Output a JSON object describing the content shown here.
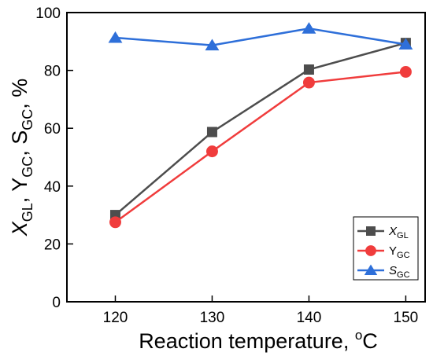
{
  "chart_data": {
    "type": "line",
    "xlabel": "Reaction temperature, ",
    "xlabel_unit_sup": "o",
    "xlabel_unit": "C",
    "ylabel_parts": [
      {
        "main": "X",
        "sub": "GL",
        "italic": true
      },
      {
        "text": ", ",
        "italic": false
      },
      {
        "main": "Y",
        "sub": "GC",
        "italic": false
      },
      {
        "text": ", ",
        "italic": false
      },
      {
        "main": "S",
        "sub": "GC",
        "italic": false
      },
      {
        "text": ", %",
        "italic": false
      }
    ],
    "x": [
      120,
      130,
      140,
      150
    ],
    "xlim": [
      115,
      152
    ],
    "ylim": [
      0,
      100
    ],
    "xticks": [
      "120",
      "130",
      "140",
      "150"
    ],
    "yticks": [
      "0",
      "20",
      "40",
      "60",
      "80",
      "100"
    ],
    "series": [
      {
        "main": "X",
        "sub": "GL",
        "italic": true,
        "values": [
          30,
          58.7,
          80.3,
          89.5
        ],
        "color": "#4d4d4d",
        "marker": "square"
      },
      {
        "main": "Y",
        "sub": "GC",
        "italic": false,
        "values": [
          27.5,
          52,
          75.8,
          79.5
        ],
        "color": "#f03c3c",
        "marker": "circle"
      },
      {
        "main": "S",
        "sub": "GC",
        "italic": true,
        "values": [
          91.3,
          88.7,
          94.5,
          89
        ],
        "color": "#2e6fd9",
        "marker": "triangle"
      }
    ],
    "legend_position": "bottom-right",
    "grid": false
  }
}
